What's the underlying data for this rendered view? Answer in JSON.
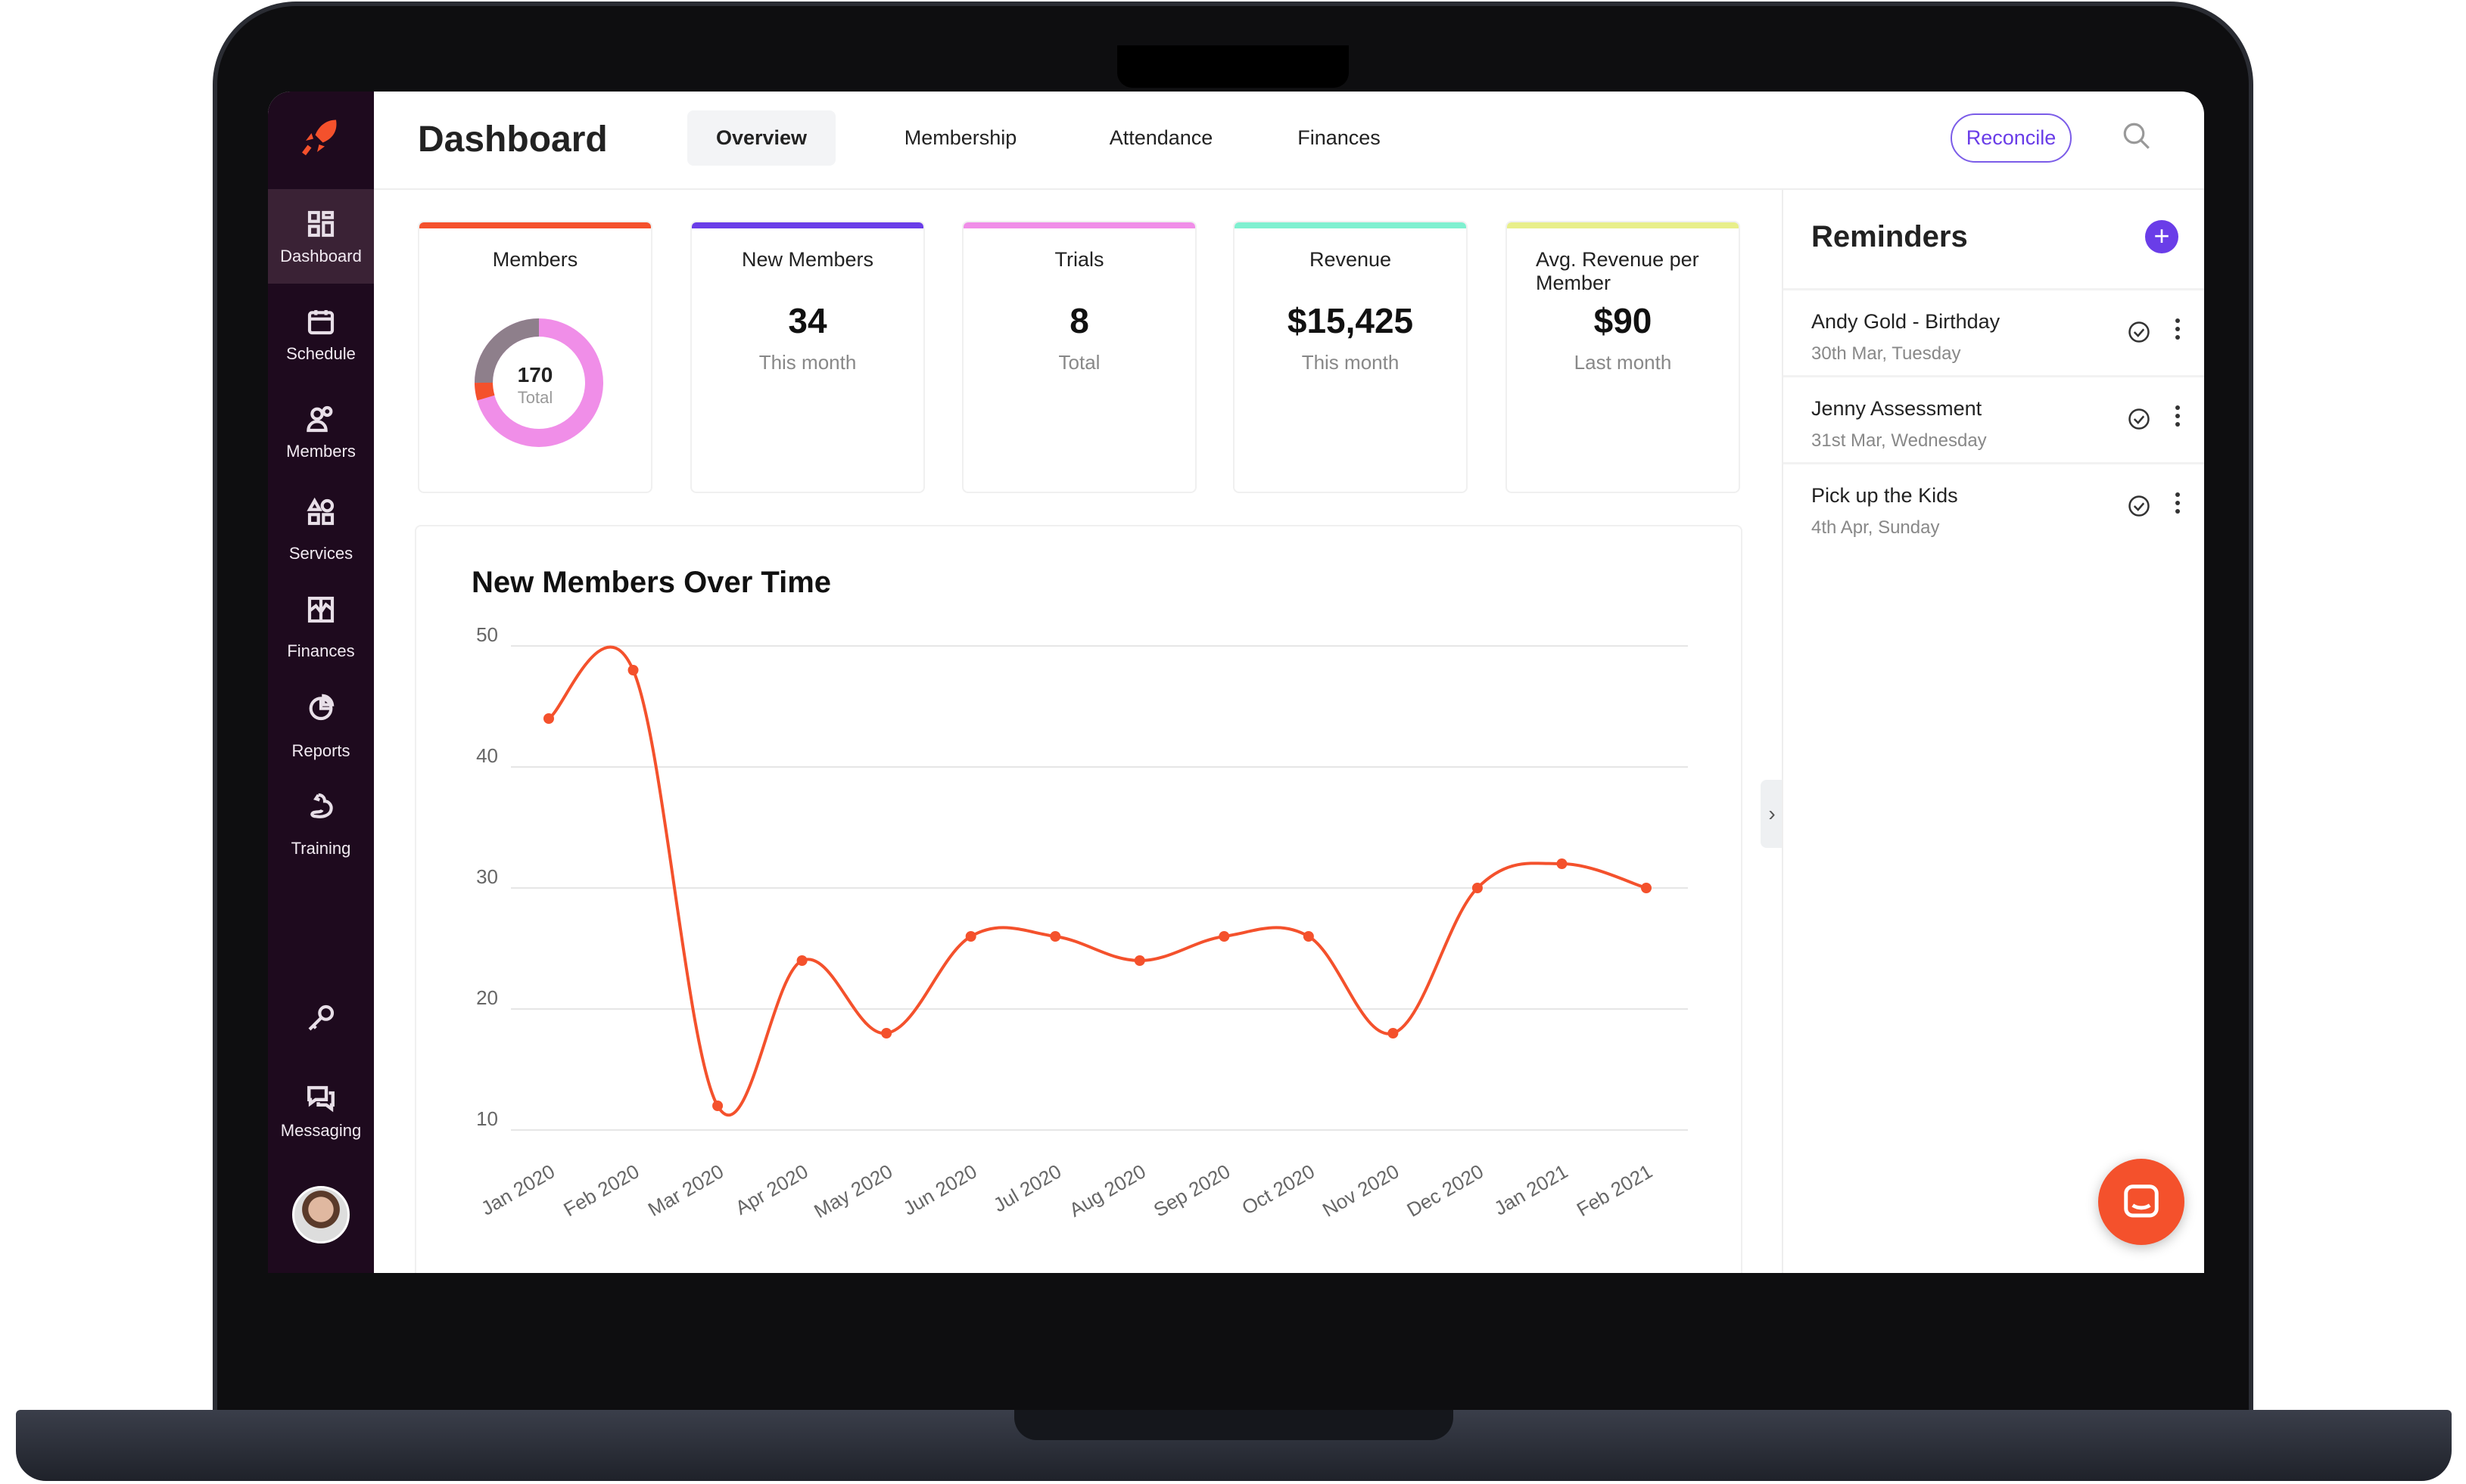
{
  "sidebar": {
    "items": [
      {
        "label": "Dashboard",
        "icon": "grid-icon"
      },
      {
        "label": "Schedule",
        "icon": "calendar-icon"
      },
      {
        "label": "Members",
        "icon": "users-icon"
      },
      {
        "label": "Services",
        "icon": "shapes-icon"
      },
      {
        "label": "Finances",
        "icon": "chart-box-icon"
      },
      {
        "label": "Reports",
        "icon": "pie-icon"
      },
      {
        "label": "Training",
        "icon": "arm-icon"
      },
      {
        "label": "Messaging",
        "icon": "chat-icon"
      }
    ]
  },
  "header": {
    "title": "Dashboard",
    "tabs": [
      {
        "label": "Overview",
        "active": true
      },
      {
        "label": "Membership"
      },
      {
        "label": "Attendance"
      },
      {
        "label": "Finances"
      }
    ],
    "reconcile": "Reconcile"
  },
  "cards": [
    {
      "title": "Members",
      "value": "170",
      "sub": "Total",
      "color": "#f4512c"
    },
    {
      "title": "New Members",
      "value": "34",
      "sub": "This month",
      "color": "#6a3de8"
    },
    {
      "title": "Trials",
      "value": "8",
      "sub": "Total",
      "color": "#f08ee8"
    },
    {
      "title": "Revenue",
      "value": "$15,425",
      "sub": "This month",
      "color": "#7ff0d0"
    },
    {
      "title": "Avg. Revenue per Member",
      "value": "$90",
      "sub": "Last month",
      "color": "#e8ef8a"
    }
  ],
  "reminders": {
    "title": "Reminders",
    "items": [
      {
        "title": "Andy Gold - Birthday",
        "date": "30th Mar, Tuesday"
      },
      {
        "title": "Jenny Assessment",
        "date": "31st Mar, Wednesday"
      },
      {
        "title": "Pick up the Kids",
        "date": "4th Apr, Sunday"
      }
    ]
  },
  "chart_data": {
    "type": "line",
    "title": "New Members Over Time",
    "categories": [
      "Jan 2020",
      "Feb 2020",
      "Mar 2020",
      "Apr 2020",
      "May 2020",
      "Jun 2020",
      "Jul 2020",
      "Aug 2020",
      "Sep 2020",
      "Oct 2020",
      "Nov 2020",
      "Dec 2020",
      "Jan 2021",
      "Feb 2021"
    ],
    "values": [
      44,
      48,
      12,
      24,
      18,
      26,
      26,
      24,
      26,
      26,
      18,
      30,
      32,
      30
    ],
    "yticks": [
      "10",
      "20",
      "30",
      "40",
      "50"
    ],
    "ylim": [
      10,
      50
    ],
    "grid": true,
    "color": "#f4512c"
  }
}
